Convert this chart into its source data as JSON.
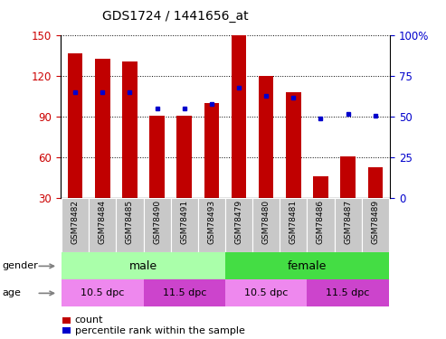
{
  "title": "GDS1724 / 1441656_at",
  "samples": [
    "GSM78482",
    "GSM78484",
    "GSM78485",
    "GSM78490",
    "GSM78491",
    "GSM78493",
    "GSM78479",
    "GSM78480",
    "GSM78481",
    "GSM78486",
    "GSM78487",
    "GSM78489"
  ],
  "counts": [
    137,
    133,
    131,
    91,
    91,
    100,
    150,
    120,
    108,
    46,
    61,
    53
  ],
  "percentiles": [
    65,
    65,
    65,
    55,
    55,
    58,
    68,
    63,
    62,
    49,
    52,
    51
  ],
  "ylim_left": [
    30,
    150
  ],
  "ylim_right": [
    0,
    100
  ],
  "yticks_left": [
    30,
    60,
    90,
    120,
    150
  ],
  "yticks_right": [
    0,
    25,
    50,
    75,
    100
  ],
  "bar_color": "#c00000",
  "dot_color": "#0000cc",
  "gender_color_male": "#aaffaa",
  "gender_color_female": "#44dd44",
  "age_color_light": "#ee88ee",
  "age_color_dark": "#cc44cc",
  "age_labels": [
    "10.5 dpc",
    "11.5 dpc",
    "10.5 dpc",
    "11.5 dpc"
  ],
  "tick_label_color_left": "#cc0000",
  "tick_label_color_right": "#0000cc",
  "xlabel_bg": "#c8c8c8"
}
